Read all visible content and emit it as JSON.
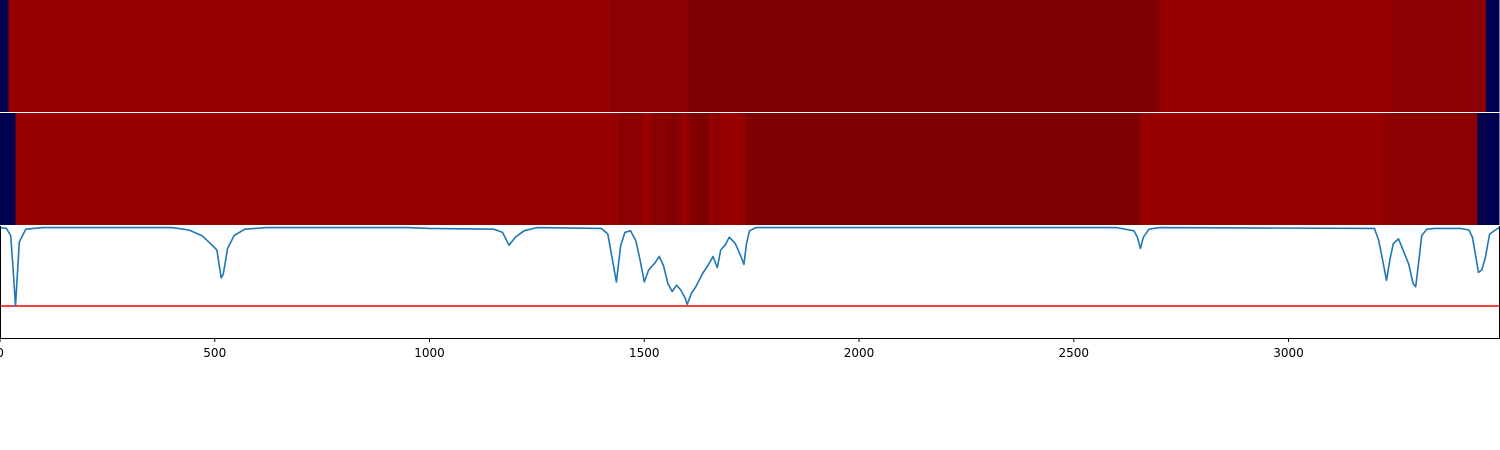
{
  "chart_data": {
    "type": "heatmap",
    "title": "",
    "xlabel": "",
    "ylabel": "",
    "xlim": [
      0,
      3490
    ],
    "x_ticks": [
      0,
      500,
      1000,
      1500,
      2000,
      2500,
      3000
    ],
    "x_tick_labels": [
      "0",
      "500",
      "1000",
      "1500",
      "2000",
      "2500",
      "3000"
    ],
    "grid": false,
    "legend": "none",
    "colors": {
      "low": "#000050",
      "high": "#990000",
      "mid": "#8b0000",
      "dark": "#7f0000",
      "line": "#1f77b4",
      "threshold": "#ff0000"
    },
    "heatmap_rows": [
      {
        "segments": [
          {
            "start": 0,
            "end": 20,
            "level": "low"
          },
          {
            "start": 20,
            "end": 1420,
            "level": "high"
          },
          {
            "start": 1420,
            "end": 1600,
            "level": "mid"
          },
          {
            "start": 1600,
            "end": 2700,
            "level": "dark"
          },
          {
            "start": 2700,
            "end": 3240,
            "level": "high"
          },
          {
            "start": 3240,
            "end": 3460,
            "level": "mid"
          },
          {
            "start": 3460,
            "end": 3490,
            "level": "low"
          }
        ]
      },
      {
        "segments": [
          {
            "start": 0,
            "end": 36,
            "level": "low"
          },
          {
            "start": 36,
            "end": 1438,
            "level": "high"
          },
          {
            "start": 1438,
            "end": 1495,
            "level": "mid"
          },
          {
            "start": 1495,
            "end": 1515,
            "level": "high"
          },
          {
            "start": 1515,
            "end": 1562,
            "level": "mid"
          },
          {
            "start": 1562,
            "end": 1575,
            "level": "dark"
          },
          {
            "start": 1575,
            "end": 1585,
            "level": "mid"
          },
          {
            "start": 1585,
            "end": 1598,
            "level": "high"
          },
          {
            "start": 1598,
            "end": 1608,
            "level": "mid"
          },
          {
            "start": 1608,
            "end": 1650,
            "level": "dark"
          },
          {
            "start": 1650,
            "end": 1660,
            "level": "high"
          },
          {
            "start": 1660,
            "end": 1675,
            "level": "mid"
          },
          {
            "start": 1675,
            "end": 1735,
            "level": "high"
          },
          {
            "start": 1735,
            "end": 2655,
            "level": "dark"
          },
          {
            "start": 2655,
            "end": 3225,
            "level": "high"
          },
          {
            "start": 3225,
            "end": 3440,
            "level": "mid"
          },
          {
            "start": 3440,
            "end": 3490,
            "level": "low"
          }
        ]
      }
    ],
    "line_series": {
      "x": [
        0,
        15,
        25,
        30,
        36,
        45,
        60,
        100,
        200,
        400,
        440,
        470,
        490,
        505,
        515,
        520,
        530,
        545,
        570,
        620,
        800,
        950,
        1000,
        1150,
        1170,
        1185,
        1200,
        1220,
        1250,
        1400,
        1415,
        1425,
        1435,
        1445,
        1455,
        1468,
        1480,
        1490,
        1500,
        1510,
        1525,
        1535,
        1545,
        1555,
        1565,
        1575,
        1585,
        1595,
        1600,
        1610,
        1620,
        1635,
        1645,
        1652,
        1660,
        1670,
        1678,
        1688,
        1698,
        1712,
        1725,
        1732,
        1738,
        1745,
        1760,
        1900,
        2500,
        2600,
        2640,
        2648,
        2655,
        2662,
        2675,
        2700,
        3200,
        3210,
        3220,
        3228,
        3236,
        3244,
        3256,
        3265,
        3280,
        3290,
        3296,
        3303,
        3310,
        3322,
        3340,
        3400,
        3420,
        3428,
        3436,
        3442,
        3450,
        3458,
        3468,
        3490
      ],
      "y": [
        -0.02,
        -0.03,
        -0.12,
        -0.5,
        -1.0,
        -0.2,
        -0.04,
        -0.02,
        -0.02,
        -0.02,
        -0.05,
        -0.12,
        -0.22,
        -0.3,
        -0.65,
        -0.6,
        -0.28,
        -0.12,
        -0.04,
        -0.02,
        -0.02,
        -0.02,
        -0.03,
        -0.04,
        -0.08,
        -0.24,
        -0.14,
        -0.06,
        -0.02,
        -0.03,
        -0.1,
        -0.4,
        -0.7,
        -0.25,
        -0.08,
        -0.06,
        -0.18,
        -0.42,
        -0.7,
        -0.55,
        -0.46,
        -0.38,
        -0.5,
        -0.72,
        -0.82,
        -0.74,
        -0.8,
        -0.9,
        -0.98,
        -0.84,
        -0.76,
        -0.6,
        -0.52,
        -0.46,
        -0.38,
        -0.52,
        -0.3,
        -0.24,
        -0.14,
        -0.22,
        -0.38,
        -0.48,
        -0.22,
        -0.06,
        -0.02,
        -0.02,
        -0.02,
        -0.02,
        -0.06,
        -0.14,
        -0.28,
        -0.14,
        -0.04,
        -0.02,
        -0.03,
        -0.18,
        -0.45,
        -0.68,
        -0.42,
        -0.22,
        -0.16,
        -0.28,
        -0.48,
        -0.72,
        -0.76,
        -0.45,
        -0.12,
        -0.04,
        -0.03,
        -0.03,
        -0.05,
        -0.14,
        -0.38,
        -0.58,
        -0.55,
        -0.4,
        -0.1,
        -0.02
      ]
    },
    "threshold": -1.0,
    "line_ylim": [
      -1.4,
      0.0
    ]
  }
}
